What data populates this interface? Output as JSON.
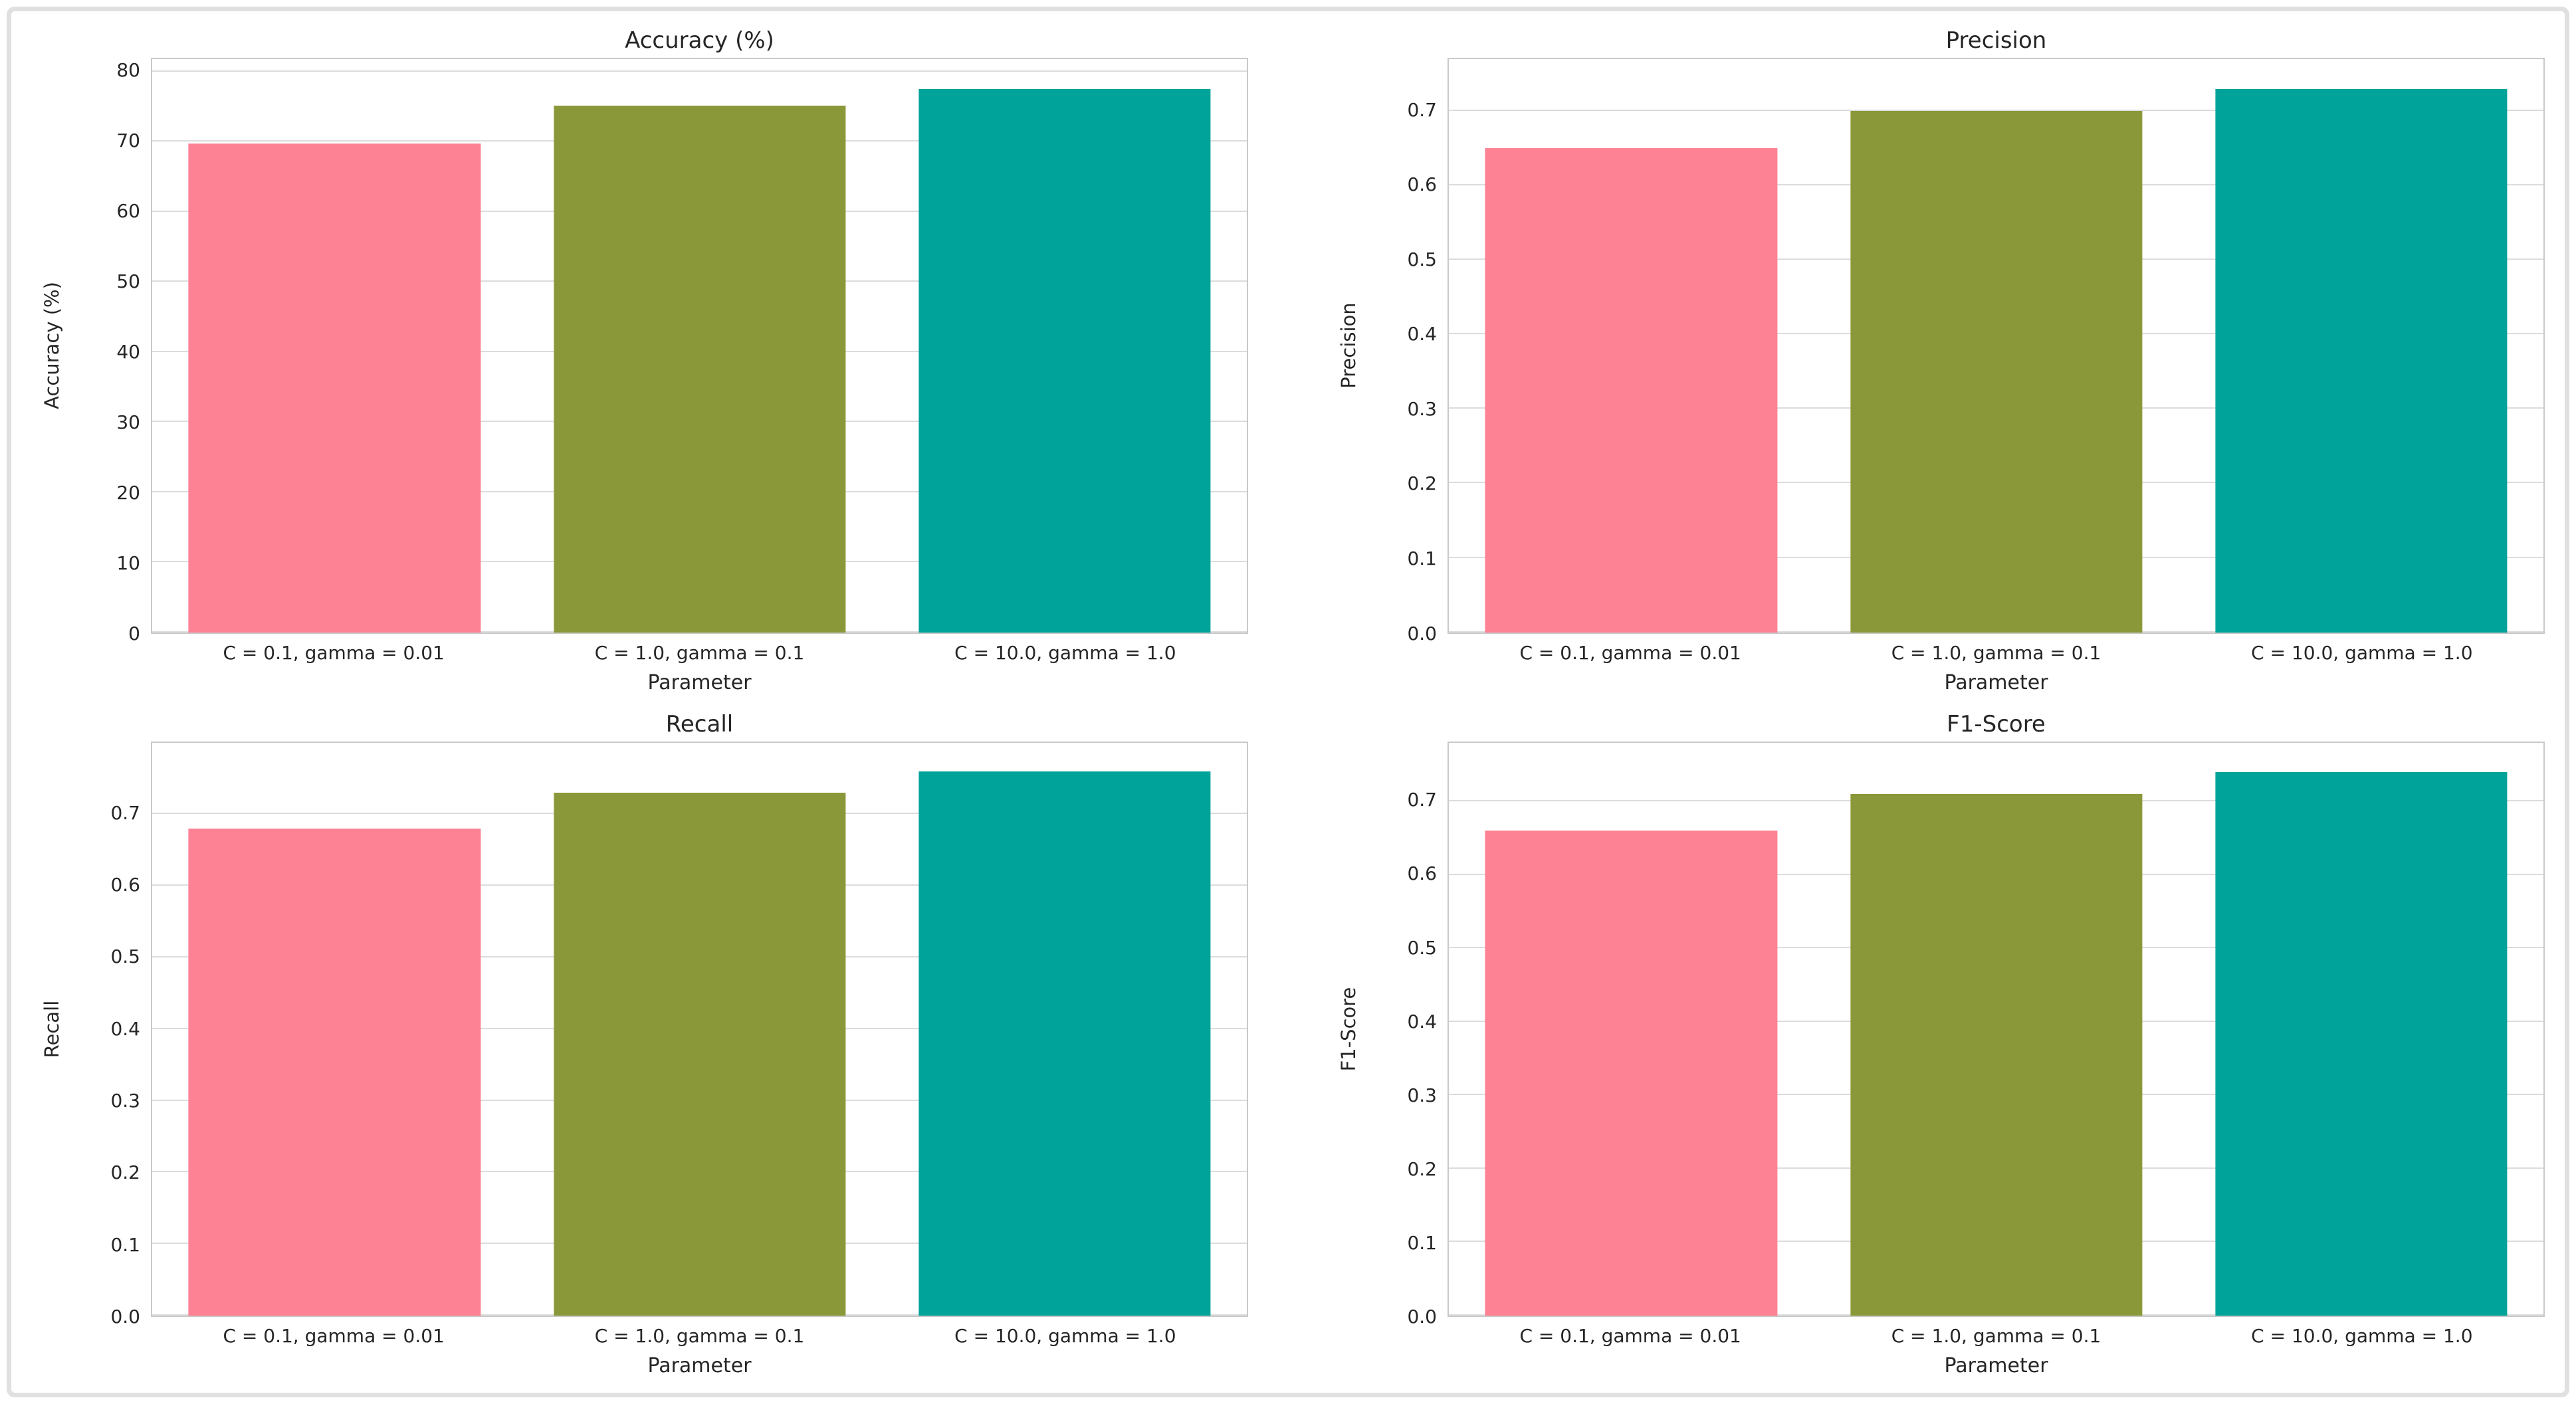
{
  "style": {
    "bar_colors": [
      "#fc8294",
      "#8b9839",
      "#00a399"
    ],
    "grid_color": "#dcdcdc",
    "spine_color": "#c9c9c9",
    "text_color": "#262626",
    "frame_border_color": "#e0e0e0",
    "background": "#ffffff"
  },
  "chart_data": [
    {
      "type": "bar",
      "title": "Accuracy (%)",
      "ylabel": "Accuracy (%)",
      "xlabel": "Parameter",
      "categories": [
        "C = 0.1, gamma = 0.01",
        "C = 1.0, gamma = 0.1",
        "C = 10.0, gamma = 1.0"
      ],
      "values": [
        69.8,
        75.2,
        77.5
      ],
      "ylim": [
        0,
        81.8
      ],
      "ytick_values": [
        0,
        10,
        20,
        30,
        40,
        50,
        60,
        70,
        80
      ],
      "ytick_labels": [
        "0",
        "10",
        "20",
        "30",
        "40",
        "50",
        "60",
        "70",
        "80"
      ],
      "grid": "horizontal",
      "legend": "none"
    },
    {
      "type": "bar",
      "title": "Precision",
      "ylabel": "Precision",
      "xlabel": "Parameter",
      "categories": [
        "C = 0.1, gamma = 0.01",
        "C = 1.0, gamma = 0.1",
        "C = 10.0, gamma = 1.0"
      ],
      "values": [
        0.65,
        0.7,
        0.73
      ],
      "ylim": [
        0,
        0.77
      ],
      "ytick_values": [
        0,
        0.1,
        0.2,
        0.3,
        0.4,
        0.5,
        0.6,
        0.7
      ],
      "ytick_labels": [
        "0.0",
        "0.1",
        "0.2",
        "0.3",
        "0.4",
        "0.5",
        "0.6",
        "0.7"
      ],
      "grid": "horizontal",
      "legend": "none"
    },
    {
      "type": "bar",
      "title": "Recall",
      "ylabel": "Recall",
      "xlabel": "Parameter",
      "categories": [
        "C = 0.1, gamma = 0.01",
        "C = 1.0, gamma = 0.1",
        "C = 10.0, gamma = 1.0"
      ],
      "values": [
        0.68,
        0.73,
        0.76
      ],
      "ylim": [
        0,
        0.8
      ],
      "ytick_values": [
        0,
        0.1,
        0.2,
        0.3,
        0.4,
        0.5,
        0.6,
        0.7
      ],
      "ytick_labels": [
        "0.0",
        "0.1",
        "0.2",
        "0.3",
        "0.4",
        "0.5",
        "0.6",
        "0.7"
      ],
      "grid": "horizontal",
      "legend": "none"
    },
    {
      "type": "bar",
      "title": "F1-Score",
      "ylabel": "F1-Score",
      "xlabel": "Parameter",
      "categories": [
        "C = 0.1, gamma = 0.01",
        "C = 1.0, gamma = 0.1",
        "C = 10.0, gamma = 1.0"
      ],
      "values": [
        0.66,
        0.71,
        0.74
      ],
      "ylim": [
        0,
        0.78
      ],
      "ytick_values": [
        0,
        0.1,
        0.2,
        0.3,
        0.4,
        0.5,
        0.6,
        0.7
      ],
      "ytick_labels": [
        "0.0",
        "0.1",
        "0.2",
        "0.3",
        "0.4",
        "0.5",
        "0.6",
        "0.7"
      ],
      "grid": "horizontal",
      "legend": "none"
    }
  ]
}
